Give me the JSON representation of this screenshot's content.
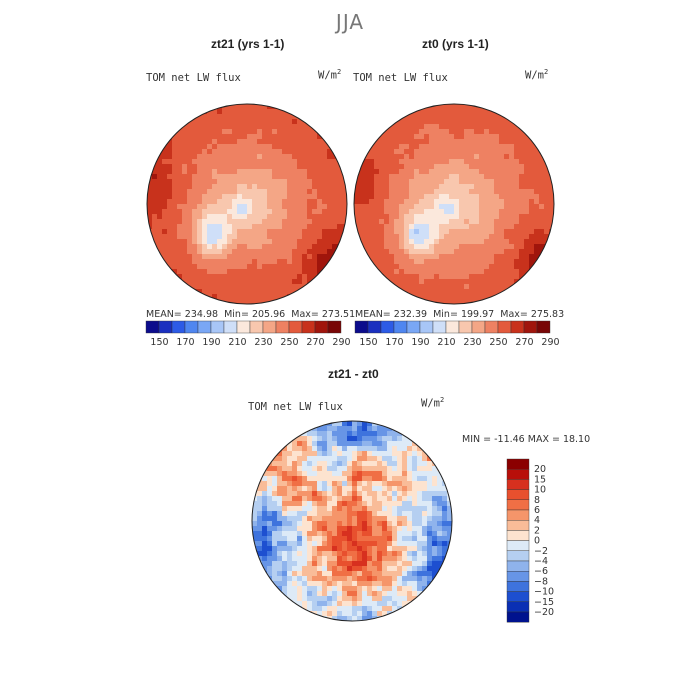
{
  "page": {
    "title": "JJA"
  },
  "chart_data": [
    {
      "type": "heatmap",
      "projection": "north-polar-stereographic",
      "title": "zt21 (yrs 1-1)",
      "variable": "TOM net LW flux",
      "units": "W/m",
      "units_exponent": "2",
      "stats": {
        "mean_label": "MEAN=",
        "mean": "234.98",
        "min_label": "Min=",
        "min": "205.96",
        "max_label": "Max=",
        "max": "273.51"
      },
      "colorbar": {
        "orientation": "horizontal",
        "levels": [
          "150",
          "170",
          "190",
          "210",
          "230",
          "250",
          "270",
          "290"
        ],
        "colors": [
          "#0c0c8c",
          "#1a2fbf",
          "#2d5be6",
          "#4f86f0",
          "#7aa7f5",
          "#a8c6f7",
          "#cfdff8",
          "#fbe8dc",
          "#f8c7ae",
          "#f4a686",
          "#ee8162",
          "#e35a3c",
          "#c8321c",
          "#a0150c",
          "#780606"
        ]
      },
      "field_seed": 21
    },
    {
      "type": "heatmap",
      "projection": "north-polar-stereographic",
      "title": "zt0 (yrs 1-1)",
      "variable": "TOM net LW flux",
      "units": "W/m",
      "units_exponent": "2",
      "stats": {
        "mean_label": "MEAN=",
        "mean": "232.39",
        "min_label": "Min=",
        "min": "199.97",
        "max_label": "Max=",
        "max": "275.83"
      },
      "colorbar": {
        "orientation": "horizontal",
        "levels": [
          "150",
          "170",
          "190",
          "210",
          "230",
          "250",
          "270",
          "290"
        ],
        "colors": [
          "#0c0c8c",
          "#1a2fbf",
          "#2d5be6",
          "#4f86f0",
          "#7aa7f5",
          "#a8c6f7",
          "#cfdff8",
          "#fbe8dc",
          "#f8c7ae",
          "#f4a686",
          "#ee8162",
          "#e35a3c",
          "#c8321c",
          "#a0150c",
          "#780606"
        ]
      },
      "field_seed": 0
    },
    {
      "type": "heatmap",
      "projection": "north-polar-stereographic",
      "title": "zt21 - zt0",
      "variable": "TOM net LW flux",
      "units": "W/m",
      "units_exponent": "2",
      "stats": {
        "text": "MIN = -11.46 MAX =  18.10",
        "min": "-11.46",
        "max": "18.10"
      },
      "colorbar": {
        "orientation": "vertical",
        "levels": [
          "20",
          "15",
          "10",
          "8",
          "6",
          "4",
          "2",
          "0",
          "−2",
          "−4",
          "−6",
          "−8",
          "−10",
          "−15",
          "−20"
        ],
        "colors": [
          "#8b0000",
          "#b80f0a",
          "#d7301f",
          "#e8502e",
          "#f06f45",
          "#f5956a",
          "#f9bc98",
          "#fde3cf",
          "#ddeaf7",
          "#b5cff1",
          "#8fb3ec",
          "#6795e6",
          "#3e73dd",
          "#1d4fd0",
          "#0a2fb4",
          "#00128e"
        ]
      },
      "field_seed": 99
    }
  ]
}
